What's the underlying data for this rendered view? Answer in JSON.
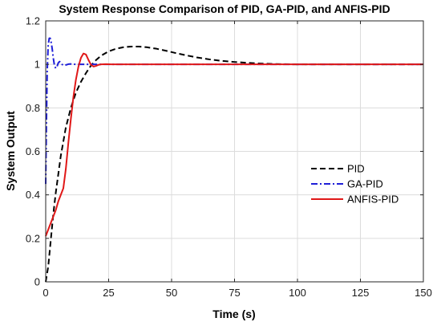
{
  "chart_data": {
    "type": "line",
    "title": "System Response Comparison of PID, GA-PID, and ANFIS-PID",
    "xlabel": "Time (s)",
    "ylabel": "System Output",
    "xlim": [
      0,
      150
    ],
    "ylim": [
      0,
      1.2
    ],
    "xticks": [
      0,
      25,
      50,
      75,
      100,
      125,
      150
    ],
    "xtick_labels": [
      "0",
      "25",
      "50",
      "75",
      "100",
      "125",
      "150"
    ],
    "yticks": [
      0,
      0.2,
      0.4,
      0.6,
      0.8,
      1,
      1.2
    ],
    "ytick_labels": [
      "0",
      "0.2",
      "0.4",
      "0.6",
      "0.8",
      "1",
      "1.2"
    ],
    "grid": true,
    "legend_position": "right",
    "series": [
      {
        "name": "PID",
        "color": "#000000",
        "style": "dashed",
        "x": [
          0,
          1,
          2,
          3,
          4,
          6,
          8,
          10,
          12,
          14,
          16,
          18,
          20,
          22,
          25,
          28,
          31,
          34,
          37,
          40,
          44,
          48,
          52,
          56,
          60,
          65,
          70,
          75,
          80,
          85,
          90,
          95,
          100,
          105,
          110,
          120,
          130,
          140,
          150
        ],
        "y": [
          0,
          0.07,
          0.19,
          0.31,
          0.41,
          0.58,
          0.71,
          0.8,
          0.87,
          0.92,
          0.96,
          0.995,
          1.02,
          1.04,
          1.06,
          1.072,
          1.079,
          1.082,
          1.082,
          1.079,
          1.072,
          1.062,
          1.051,
          1.041,
          1.032,
          1.023,
          1.016,
          1.011,
          1.007,
          1.004,
          1.002,
          1.001,
          1.0,
          1.0,
          1.0,
          1.0,
          1.0,
          1.0,
          1.0
        ]
      },
      {
        "name": "GA-PID",
        "color": "#1f1fd8",
        "style": "dashdot",
        "x": [
          0,
          0.3,
          0.6,
          1.0,
          1.4,
          1.8,
          2.2,
          2.6,
          3.0,
          3.5,
          4.0,
          4.5,
          5.0,
          5.5,
          6.0,
          6.5,
          7.0,
          7.5,
          8.0,
          9.0,
          10.0,
          11.0,
          12.0,
          14.0,
          16.0,
          18.0,
          20.0,
          25.0,
          30.0,
          50.0,
          75.0,
          100.0,
          125.0,
          150.0
        ],
        "y": [
          0.45,
          0.74,
          0.97,
          1.09,
          1.12,
          1.12,
          1.1,
          1.07,
          1.03,
          0.993,
          0.982,
          0.99,
          1.007,
          1.013,
          1.008,
          1.0,
          0.996,
          0.995,
          0.997,
          1.001,
          1.002,
          1.001,
          1.0,
          1.0,
          1.0,
          1.0,
          1.0,
          1.0,
          1.0,
          1.0,
          1.0,
          1.0,
          1.0,
          1.0
        ]
      },
      {
        "name": "ANFIS-PID",
        "color": "#e01818",
        "style": "solid",
        "x": [
          0,
          1,
          2,
          3,
          4,
          5,
          6,
          7,
          8,
          9,
          10,
          11,
          12,
          13,
          14,
          15,
          16,
          17,
          18,
          19,
          20,
          21,
          22,
          24,
          26,
          28,
          30,
          40,
          50,
          75,
          100,
          125,
          150
        ],
        "y": [
          0.21,
          0.24,
          0.27,
          0.3,
          0.33,
          0.37,
          0.4,
          0.43,
          0.52,
          0.64,
          0.75,
          0.85,
          0.93,
          0.99,
          1.03,
          1.05,
          1.045,
          1.02,
          0.998,
          0.99,
          0.993,
          0.998,
          1.0,
          1.001,
          1.0,
          1.0,
          1.0,
          1.0,
          1.0,
          1.0,
          1.0,
          1.0,
          1.0
        ]
      }
    ]
  }
}
